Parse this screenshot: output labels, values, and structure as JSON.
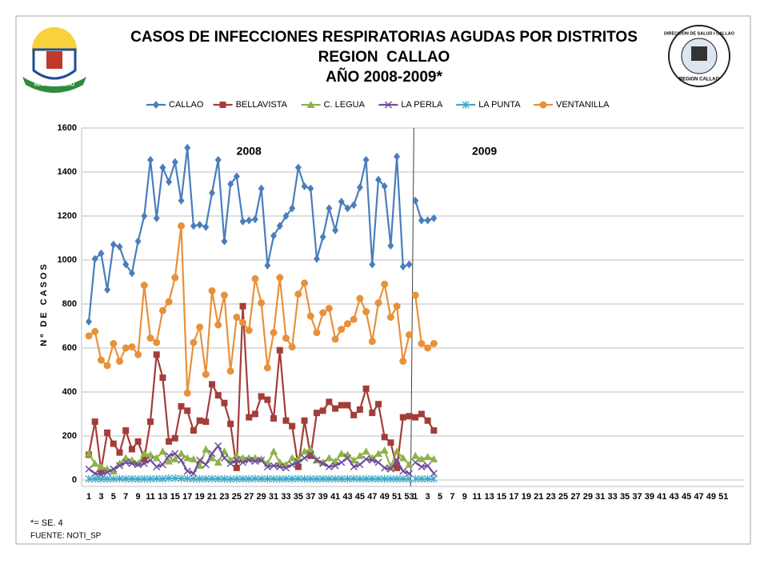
{
  "chart_data": {
    "type": "line",
    "title": [
      "CASOS DE INFECCIONES RESPIRATORIAS AGUDAS POR DISTRITOS",
      "REGION  CALLAO",
      "AÑO 2008-2009*"
    ],
    "y_label": "Nº DE CASOS",
    "annotations": [
      "2008",
      "2009"
    ],
    "footnote": "*= SE. 4",
    "source": "FUENTE: NOTI_SP",
    "logos": {
      "left": "REGION CALLAO",
      "right_top": "DIRECCION DE SALUD I CALLAO",
      "right_bottom": "REGION CALLAO"
    },
    "ylim": [
      0,
      1600
    ],
    "yticks": [
      0,
      200,
      400,
      600,
      800,
      1000,
      1200,
      1400,
      1600
    ],
    "grid": true,
    "legend": "top",
    "categories": [
      "1",
      null,
      "3",
      null,
      "5",
      null,
      "7",
      null,
      "9",
      null,
      "11",
      null,
      "13",
      null,
      "15",
      null,
      "17",
      null,
      "19",
      null,
      "21",
      null,
      "23",
      null,
      "25",
      null,
      "27",
      null,
      "29",
      null,
      "31",
      null,
      "33",
      null,
      "35",
      null,
      "37",
      null,
      "39",
      null,
      "41",
      null,
      "43",
      null,
      "45",
      null,
      "47",
      null,
      "49",
      null,
      "51",
      null,
      "53",
      "1",
      null,
      "3",
      null,
      "5",
      null,
      "7",
      null,
      "9",
      null,
      "11",
      null,
      "13",
      null,
      "15",
      null,
      "17",
      null,
      "19",
      null,
      "21",
      null,
      "23",
      null,
      "25",
      null,
      "27",
      null,
      "29",
      null,
      "31",
      null,
      "33",
      null,
      "35",
      null,
      "37",
      null,
      "39",
      null,
      "41",
      null,
      "43",
      null,
      "45",
      null,
      "47",
      null,
      "49",
      null,
      "51",
      null
    ],
    "series": [
      {
        "name": "CALLAO",
        "color": "#4a7ebb",
        "marker": "diamond",
        "values": [
          720,
          1005,
          1030,
          865,
          1070,
          1060,
          980,
          940,
          1085,
          1200,
          1455,
          1190,
          1420,
          1355,
          1445,
          1270,
          1510,
          1155,
          1160,
          1150,
          1305,
          1455,
          1085,
          1345,
          1380,
          1175,
          1180,
          1185,
          1325,
          975,
          1110,
          1155,
          1200,
          1235,
          1420,
          1335,
          1325,
          1005,
          1105,
          1235,
          1135,
          1265,
          1235,
          1250,
          1330,
          1455,
          980,
          1365,
          1335,
          1065,
          1470,
          970,
          980,
          1270,
          1180,
          1180,
          1190,
          null,
          null,
          null,
          null,
          null,
          null,
          null,
          null,
          null,
          null,
          null,
          null,
          null,
          null,
          null,
          null,
          null,
          null,
          null,
          null,
          null,
          null,
          null,
          null,
          null,
          null,
          null,
          null,
          null,
          null,
          null,
          null,
          null,
          null,
          null,
          null,
          null,
          null,
          null,
          null,
          null,
          null,
          null,
          null,
          null,
          null,
          null,
          null
        ]
      },
      {
        "name": "BELLAVISTA",
        "color": "#a33d3a",
        "marker": "square",
        "values": [
          115,
          265,
          45,
          215,
          165,
          125,
          225,
          140,
          175,
          95,
          265,
          570,
          465,
          175,
          190,
          335,
          315,
          225,
          270,
          265,
          435,
          385,
          350,
          255,
          55,
          790,
          285,
          300,
          380,
          365,
          280,
          590,
          270,
          245,
          60,
          270,
          110,
          305,
          315,
          355,
          325,
          340,
          340,
          295,
          320,
          415,
          305,
          345,
          195,
          170,
          55,
          285,
          290,
          285,
          300,
          270,
          225,
          null,
          null,
          null,
          null,
          null,
          null,
          null,
          null,
          null,
          null,
          null,
          null,
          null,
          null,
          null,
          null,
          null,
          null,
          null,
          null,
          null,
          null,
          null,
          null,
          null,
          null,
          null,
          null,
          null,
          null,
          null,
          null,
          null,
          null,
          null,
          null,
          null,
          null,
          null,
          null,
          null,
          null,
          null,
          null,
          null,
          null,
          null,
          null
        ]
      },
      {
        "name": "C. LEGUA",
        "color": "#8eb347",
        "marker": "triangle",
        "values": [
          120,
          75,
          60,
          50,
          40,
          75,
          100,
          90,
          75,
          120,
          115,
          100,
          130,
          85,
          95,
          120,
          100,
          95,
          65,
          140,
          100,
          80,
          130,
          90,
          110,
          100,
          100,
          100,
          95,
          75,
          130,
          80,
          70,
          100,
          95,
          130,
          140,
          90,
          80,
          100,
          85,
          120,
          115,
          90,
          110,
          130,
          100,
          120,
          135,
          60,
          130,
          100,
          70,
          110,
          95,
          105,
          95,
          null,
          null,
          null,
          null,
          null,
          null,
          null,
          null,
          null,
          null,
          null,
          null,
          null,
          null,
          null,
          null,
          null,
          null,
          null,
          null,
          null,
          null,
          null,
          null,
          null,
          null,
          null,
          null,
          null,
          null,
          null,
          null,
          null,
          null,
          null,
          null,
          null,
          null,
          null,
          null,
          null,
          null,
          null,
          null,
          null,
          null,
          null,
          null
        ]
      },
      {
        "name": "LA PERLA",
        "color": "#6f4c99",
        "marker": "x",
        "values": [
          50,
          30,
          25,
          35,
          50,
          65,
          80,
          75,
          70,
          75,
          90,
          60,
          70,
          110,
          120,
          90,
          40,
          30,
          90,
          70,
          120,
          155,
          100,
          75,
          90,
          80,
          90,
          85,
          90,
          60,
          65,
          60,
          55,
          70,
          80,
          100,
          115,
          90,
          75,
          60,
          65,
          80,
          100,
          60,
          70,
          95,
          90,
          80,
          55,
          50,
          90,
          40,
          30,
          80,
          60,
          65,
          30,
          null,
          null,
          null,
          null,
          null,
          null,
          null,
          null,
          null,
          null,
          null,
          null,
          null,
          null,
          null,
          null,
          null,
          null,
          null,
          null,
          null,
          null,
          null,
          null,
          null,
          null,
          null,
          null,
          null,
          null,
          null,
          null,
          null,
          null,
          null,
          null,
          null,
          null,
          null,
          null,
          null,
          null,
          null,
          null,
          null,
          null,
          null,
          null
        ]
      },
      {
        "name": "LA PUNTA",
        "color": "#40a9c9",
        "marker": "star",
        "values": [
          5,
          5,
          4,
          5,
          5,
          6,
          5,
          5,
          4,
          5,
          5,
          6,
          5,
          8,
          8,
          7,
          6,
          5,
          5,
          5,
          6,
          5,
          5,
          4,
          5,
          5,
          5,
          6,
          5,
          5,
          5,
          5,
          5,
          5,
          6,
          5,
          5,
          5,
          5,
          5,
          5,
          5,
          5,
          6,
          5,
          5,
          5,
          5,
          5,
          5,
          5,
          5,
          5,
          5,
          5,
          5,
          5,
          null,
          null,
          null,
          null,
          null,
          null,
          null,
          null,
          null,
          null,
          null,
          null,
          null,
          null,
          null,
          null,
          null,
          null,
          null,
          null,
          null,
          null,
          null,
          null,
          null,
          null,
          null,
          null,
          null,
          null,
          null,
          null,
          null,
          null,
          null,
          null,
          null,
          null,
          null,
          null,
          null,
          null,
          null,
          null,
          null,
          null,
          null,
          null
        ]
      },
      {
        "name": "VENTANILLA",
        "color": "#e8913a",
        "marker": "circle",
        "values": [
          655,
          675,
          545,
          520,
          620,
          540,
          600,
          605,
          570,
          885,
          645,
          625,
          770,
          810,
          920,
          1155,
          395,
          625,
          695,
          480,
          860,
          705,
          840,
          495,
          740,
          715,
          680,
          915,
          805,
          510,
          670,
          920,
          645,
          605,
          845,
          895,
          745,
          670,
          760,
          780,
          640,
          685,
          710,
          730,
          825,
          765,
          630,
          805,
          890,
          740,
          790,
          540,
          660,
          840,
          620,
          600,
          620,
          null,
          null,
          null,
          null,
          null,
          null,
          null,
          null,
          null,
          null,
          null,
          null,
          null,
          null,
          null,
          null,
          null,
          null,
          null,
          null,
          null,
          null,
          null,
          null,
          null,
          null,
          null,
          null,
          null,
          null,
          null,
          null,
          null,
          null,
          null,
          null,
          null,
          null,
          null,
          null,
          null,
          null,
          null,
          null,
          null,
          null,
          null,
          null
        ]
      }
    ]
  }
}
